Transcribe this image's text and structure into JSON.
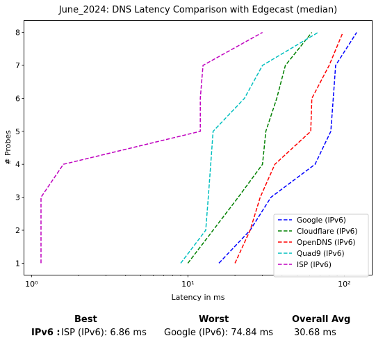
{
  "chart_data": {
    "type": "line",
    "title": "June_2024: DNS Latency Comparison with Edgecast (median)",
    "xlabel": "Latency in ms",
    "ylabel": "# Probes",
    "xscale": "log",
    "xlim": [
      0.9,
      150
    ],
    "ylim": [
      0.65,
      8.35
    ],
    "x_ticks": [
      {
        "value": 1,
        "label": "10⁰"
      },
      {
        "value": 10,
        "label": "10¹"
      },
      {
        "value": 100,
        "label": "10²"
      }
    ],
    "y_ticks": [
      1,
      2,
      3,
      4,
      5,
      6,
      7,
      8
    ],
    "grid": false,
    "legend_position": "lower-right",
    "line_style": "dashed",
    "y": [
      1,
      2,
      3,
      4,
      5,
      6,
      7,
      8
    ],
    "series": [
      {
        "name": "Google (IPv6)",
        "color": "#0000ff",
        "x": [
          15.8,
          25,
          34,
          65,
          82,
          85,
          88,
          120
        ]
      },
      {
        "name": "Cloudflare (IPv6)",
        "color": "#008000",
        "x": [
          10,
          14.5,
          21,
          30,
          31.5,
          37,
          42,
          62
        ]
      },
      {
        "name": "OpenDNS (IPv6)",
        "color": "#ff0000",
        "x": [
          20,
          25,
          29,
          36,
          61,
          62,
          80,
          98
        ]
      },
      {
        "name": "Quad9 (IPv6)",
        "color": "#00bfbf",
        "x": [
          9,
          13,
          13.5,
          14,
          14.5,
          23,
          30,
          68
        ]
      },
      {
        "name": "ISP (IPv6)",
        "color": "#bf00bf",
        "x": [
          1.15,
          1.15,
          1.15,
          1.6,
          12,
          12,
          12.5,
          30
        ]
      }
    ]
  },
  "summary": {
    "headers": {
      "best": "Best",
      "worst": "Worst",
      "overall": "Overall Avg"
    },
    "row_label": "IPv6 :",
    "best": "ISP (IPv6): 6.86 ms",
    "worst": "Google (IPv6): 74.84 ms",
    "overall": "30.68 ms"
  }
}
